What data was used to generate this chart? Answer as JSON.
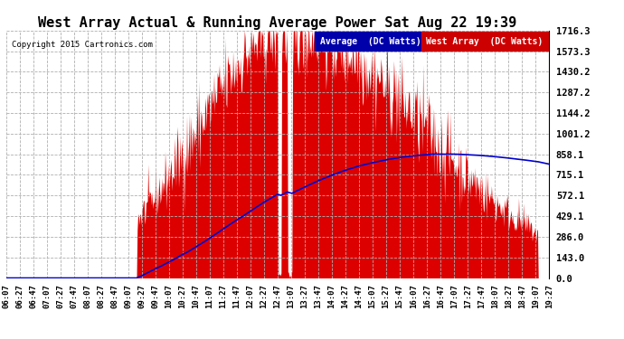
{
  "title": "West Array Actual & Running Average Power Sat Aug 22 19:39",
  "copyright": "Copyright 2015 Cartronics.com",
  "ylabel_right": [
    "1716.3",
    "1573.3",
    "1430.2",
    "1287.2",
    "1144.2",
    "1001.2",
    "858.1",
    "715.1",
    "572.1",
    "429.1",
    "286.0",
    "143.0",
    "0.0"
  ],
  "yticks_vals": [
    1716.3,
    1573.3,
    1430.2,
    1287.2,
    1144.2,
    1001.2,
    858.1,
    715.1,
    572.1,
    429.1,
    286.0,
    143.0,
    0.0
  ],
  "ymax": 1716.3,
  "ymin": 0.0,
  "fill_color": "#dd0000",
  "avg_line_color": "#0000cc",
  "background_color": "#ffffff",
  "grid_color": "#b0b0b0",
  "title_fontsize": 11,
  "legend_avg_label": "Average  (DC Watts)",
  "legend_west_label": "West Array  (DC Watts)",
  "legend_avg_bg": "#0000aa",
  "legend_west_bg": "#cc0000",
  "tick_interval_min": 20
}
